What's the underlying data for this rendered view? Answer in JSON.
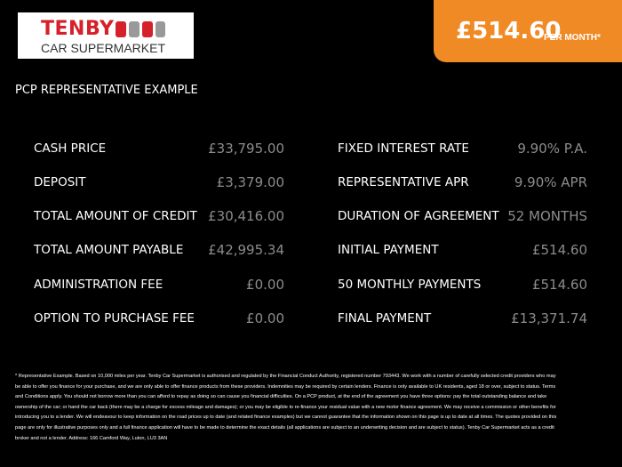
{
  "header": {
    "logo": {
      "name": "TENBY",
      "tagline": "CAR SUPERMARKET"
    },
    "price": "£514.60",
    "price_note": "PER MONTH*"
  },
  "heading": "PCP REPRESENTATIVE EXAMPLE",
  "left_rows": [
    {
      "label": "CASH PRICE",
      "value": "£33,795.00"
    },
    {
      "label": "DEPOSIT",
      "value": "£3,379.00"
    },
    {
      "label": "TOTAL AMOUNT OF CREDIT",
      "value": "£30,416.00"
    },
    {
      "label": "TOTAL AMOUNT PAYABLE",
      "value": "£42,995.34"
    },
    {
      "label": "ADMINISTRATION FEE",
      "value": "£0.00"
    },
    {
      "label": "OPTION TO PURCHASE FEE",
      "value": "£0.00"
    }
  ],
  "right_rows": [
    {
      "label": "FIXED INTEREST RATE",
      "value": "9.90% P.A."
    },
    {
      "label": "REPRESENTATIVE APR",
      "value": "9.90% APR"
    },
    {
      "label": "DURATION OF AGREEMENT",
      "value": "52 MONTHS"
    },
    {
      "label": "INITIAL PAYMENT",
      "value": "£514.60"
    },
    {
      "label": "50 MONTHLY PAYMENTS",
      "value": "£514.60"
    },
    {
      "label": "FINAL PAYMENT",
      "value": "£13,371.74"
    }
  ],
  "footnote": "* Representative Example. Based on 10,000 miles per year. Tenby Car Supermarket is authorised and regulated by the Financial Conduct Authority, registered number 793443. We work with a number of carefully selected credit providers who may be able to offer you finance for your purchase, and we are only able to offer finance products from these providers. Indemnities may be required by certain lenders. Finance is only available to UK residents, aged 18 or over, subject to status. Terms and Conditions apply. You should not borrow more than you can afford to repay as doing so can cause you financial difficulties. On a PCP product, at the end of the agreement you have three options: pay the total outstanding balance and take ownership of the car; or hand the car back (there may be a charge for excess mileage and damages); or you may be eligible to re-finance your residual value with a new motor finance agreement. We may receive a commission or other benefits for introducing you to a lender. We will endeavour to keep information on the road prices up to date (and related finance examples) but we cannot guarantee that the information shown on this page is up to date at all times. The quotes provided on this page are only for illustrative purposes only and a full finance application will have to be made to determine the exact details (all applications are subject to an underwriting decision and are subject to status). Tenby Car Supermarket acts as a credit broker and not a lender. Address: 166 Camford Way, Luton, LU3 3AN"
}
